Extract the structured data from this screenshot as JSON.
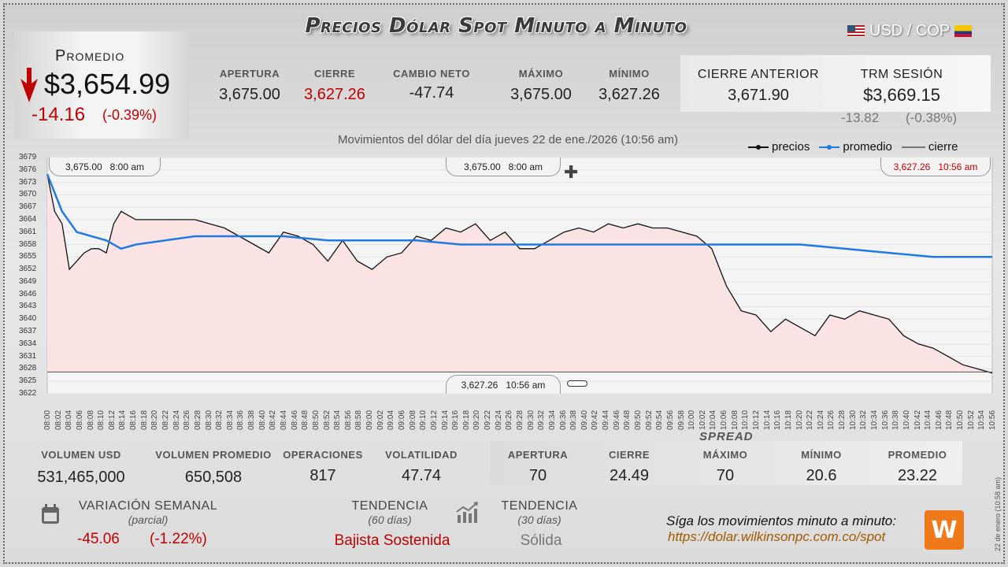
{
  "header": {
    "title": "Precios Dólar Spot Minuto a Minuto",
    "pair": "USD / COP"
  },
  "promedio": {
    "label": "Promedio",
    "price": "$3,654.99",
    "change": "-14.16",
    "pct": "(-0.39%)"
  },
  "stats": [
    {
      "label": "APERTURA",
      "value": "3,675.00"
    },
    {
      "label": "CIERRE",
      "value": "3,627.26"
    },
    {
      "label": "CAMBIO NETO",
      "value": "-47.74"
    },
    {
      "label": "MÁXIMO",
      "value": "3,675.00"
    },
    {
      "label": "MÍNIMO",
      "value": "3,627.26"
    }
  ],
  "prev": {
    "cierre_label": "CIERRE ANTERIOR",
    "cierre_value": "3,671.90",
    "trm_label": "TRM SESIÓN",
    "trm_value": "$3,669.15",
    "trm_change": "-13.82",
    "trm_pct": "(-0.38%)"
  },
  "subtitle": "Movimientos del dólar del día jueves 22 de ene./2026 (10:56 am)",
  "legend": {
    "precios": "precios",
    "promedio": "promedio",
    "cierre": "cierre"
  },
  "colors": {
    "promedio": "#1e7be6",
    "precios": "#111111",
    "down": "#c00000",
    "fill": "#fde4e4"
  },
  "bubbles": {
    "open_left": {
      "price": "3,675.00",
      "time": "8:00 am"
    },
    "open_center": {
      "price": "3,675.00",
      "time": "8:00 am"
    },
    "close_right": {
      "price": "3,627.26",
      "time": "10:56 am"
    },
    "close_bottom": {
      "price": "3,627.26",
      "time": "10:56 am"
    }
  },
  "chart_data": {
    "type": "line",
    "ylim": [
      3622,
      3679
    ],
    "yticks": [
      "3679",
      "3676",
      "3673",
      "3670",
      "3667",
      "3664",
      "3661",
      "3658",
      "3655",
      "3652",
      "3649",
      "3646",
      "3643",
      "3640",
      "3637",
      "3634",
      "3631",
      "3628",
      "3625",
      "3622"
    ],
    "xticks": [
      "08:00",
      "08:02",
      "08:04",
      "08:06",
      "08:08",
      "08:10",
      "08:12",
      "08:14",
      "08:16",
      "08:18",
      "08:20",
      "08:22",
      "08:24",
      "08:26",
      "08:28",
      "08:30",
      "08:32",
      "08:34",
      "08:36",
      "08:38",
      "08:40",
      "08:42",
      "08:44",
      "08:46",
      "08:48",
      "08:50",
      "08:52",
      "08:54",
      "08:56",
      "08:58",
      "09:00",
      "09:02",
      "09:04",
      "09:06",
      "09:08",
      "09:10",
      "09:12",
      "09:14",
      "09:16",
      "09:18",
      "09:20",
      "09:22",
      "09:24",
      "09:26",
      "09:28",
      "09:30",
      "09:32",
      "09:34",
      "09:36",
      "09:38",
      "09:40",
      "09:42",
      "09:44",
      "09:46",
      "09:48",
      "09:50",
      "09:52",
      "09:54",
      "09:56",
      "09:58",
      "10:00",
      "10:02",
      "10:04",
      "10:06",
      "10:08",
      "10:10",
      "10:12",
      "10:14",
      "10:16",
      "10:18",
      "10:20",
      "10:22",
      "10:24",
      "10:26",
      "10:28",
      "10:30",
      "10:32",
      "10:34",
      "10:36",
      "10:38",
      "10:40",
      "10:42",
      "10:44",
      "10:46",
      "10:48",
      "10:50",
      "10:52",
      "10:54",
      "10:56"
    ],
    "series": [
      {
        "name": "precios",
        "points": [
          [
            0,
            3675
          ],
          [
            1,
            3666
          ],
          [
            2,
            3663
          ],
          [
            3,
            3652
          ],
          [
            4,
            3654
          ],
          [
            5,
            3656
          ],
          [
            6,
            3657
          ],
          [
            7,
            3657
          ],
          [
            8,
            3656
          ],
          [
            9,
            3663
          ],
          [
            10,
            3666
          ],
          [
            12,
            3664
          ],
          [
            16,
            3664
          ],
          [
            20,
            3664
          ],
          [
            22,
            3663
          ],
          [
            24,
            3662
          ],
          [
            26,
            3660
          ],
          [
            28,
            3658
          ],
          [
            30,
            3656
          ],
          [
            32,
            3661
          ],
          [
            34,
            3660
          ],
          [
            36,
            3658
          ],
          [
            38,
            3654
          ],
          [
            40,
            3659
          ],
          [
            42,
            3654
          ],
          [
            44,
            3652
          ],
          [
            46,
            3655
          ],
          [
            48,
            3656
          ],
          [
            50,
            3660
          ],
          [
            52,
            3659
          ],
          [
            54,
            3662
          ],
          [
            56,
            3661
          ],
          [
            58,
            3663
          ],
          [
            60,
            3659
          ],
          [
            62,
            3661
          ],
          [
            64,
            3657
          ],
          [
            66,
            3657
          ],
          [
            68,
            3659
          ],
          [
            70,
            3661
          ],
          [
            72,
            3662
          ],
          [
            74,
            3661
          ],
          [
            76,
            3663
          ],
          [
            78,
            3662
          ],
          [
            80,
            3663
          ],
          [
            82,
            3662
          ],
          [
            84,
            3662
          ],
          [
            86,
            3661
          ],
          [
            88,
            3660
          ],
          [
            90,
            3657
          ],
          [
            92,
            3648
          ],
          [
            94,
            3642
          ],
          [
            96,
            3641
          ],
          [
            98,
            3637
          ],
          [
            100,
            3640
          ],
          [
            102,
            3638
          ],
          [
            104,
            3636
          ],
          [
            106,
            3641
          ],
          [
            108,
            3640
          ],
          [
            110,
            3642
          ],
          [
            112,
            3641
          ],
          [
            114,
            3640
          ],
          [
            116,
            3636
          ],
          [
            118,
            3634
          ],
          [
            120,
            3633
          ],
          [
            122,
            3631
          ],
          [
            124,
            3629
          ],
          [
            126,
            3628
          ],
          [
            128,
            3627
          ]
        ]
      },
      {
        "name": "promedio",
        "points": [
          [
            0,
            3675
          ],
          [
            2,
            3666
          ],
          [
            4,
            3661
          ],
          [
            6,
            3660
          ],
          [
            8,
            3659
          ],
          [
            10,
            3657
          ],
          [
            12,
            3658
          ],
          [
            16,
            3659
          ],
          [
            20,
            3660
          ],
          [
            26,
            3660
          ],
          [
            32,
            3660
          ],
          [
            38,
            3659
          ],
          [
            44,
            3659
          ],
          [
            50,
            3659
          ],
          [
            56,
            3658
          ],
          [
            62,
            3658
          ],
          [
            68,
            3658
          ],
          [
            74,
            3658
          ],
          [
            80,
            3658
          ],
          [
            86,
            3658
          ],
          [
            90,
            3658
          ],
          [
            96,
            3658
          ],
          [
            102,
            3658
          ],
          [
            108,
            3657
          ],
          [
            114,
            3656
          ],
          [
            120,
            3655
          ],
          [
            128,
            3655
          ]
        ]
      }
    ],
    "cierre": 3627.26
  },
  "volume": [
    {
      "label": "VOLUMEN USD",
      "value": "531,465,000"
    },
    {
      "label": "VOLUMEN PROMEDIO",
      "value": "650,508"
    },
    {
      "label": "OPERACIONES",
      "value": "817"
    },
    {
      "label": "VOLATILIDAD",
      "value": "47.74"
    }
  ],
  "spread": {
    "title": "SPREAD",
    "items": [
      {
        "label": "APERTURA",
        "value": "70"
      },
      {
        "label": "CIERRE",
        "value": "24.49"
      },
      {
        "label": "MÁXIMO",
        "value": "70"
      },
      {
        "label": "MÍNIMO",
        "value": "20.6"
      },
      {
        "label": "PROMEDIO",
        "value": "23.22"
      }
    ]
  },
  "semanal": {
    "label": "VARIACIÓN SEMANAL",
    "sub": "(parcial)",
    "change": "-45.06",
    "pct": "(-1.22%)"
  },
  "tendencia60": {
    "label": "TENDENCIA",
    "sub": "(60 días)",
    "value": "Bajista Sostenida"
  },
  "tendencia30": {
    "label": "TENDENCIA",
    "sub": "(30 días)",
    "value": "Sólida"
  },
  "footer": {
    "follow": "Síga los movimientos minuto a minuto:",
    "url": "https://dolar.wilkinsonpc.com.co/spot",
    "logo": "W",
    "side_date": "22 de enero (10:58 am)"
  }
}
